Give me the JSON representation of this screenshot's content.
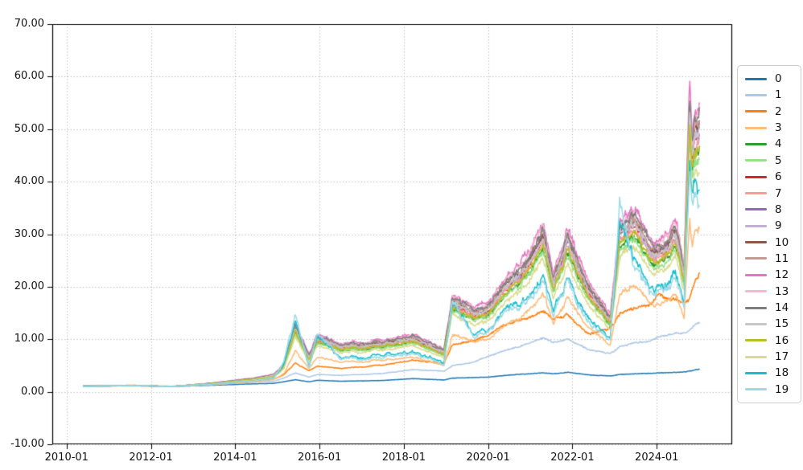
{
  "figure": {
    "title": "Historical Compounded Cumulative Returns",
    "colors": {
      "background": "#ffffff",
      "grid": "#b5b5b5",
      "spine": "#000000",
      "tick": "#000000",
      "text": "#111111",
      "legend_border": "#cccccc"
    }
  },
  "chart_data": {
    "type": "line",
    "title": "Historical Compounded Cumulative Returns",
    "xlabel": "",
    "ylabel": "",
    "grid": "dotted",
    "legend_position": "right-outside",
    "ylim": [
      -10,
      70
    ],
    "xlim_years": [
      2009.66,
      2025.79
    ],
    "y_tick_labels": [
      "70.00",
      "60.00",
      "50.00",
      "40.00",
      "30.00",
      "20.00",
      "10.00",
      "0.00",
      "-10.00"
    ],
    "x_tick_labels": [
      "2010-01",
      "2012-01",
      "2014-01",
      "2016-01",
      "2018-01",
      "2020-01",
      "2022-01",
      "2024-01"
    ],
    "x_years": [
      2010.4,
      2011.5,
      2012.5,
      2013.5,
      2014.4,
      2014.9,
      2015.15,
      2015.42,
      2015.75,
      2015.95,
      2016.5,
      2017.5,
      2018.2,
      2018.95,
      2019.15,
      2019.6,
      2020.0,
      2020.7,
      2021.3,
      2021.55,
      2021.9,
      2022.4,
      2022.9,
      2023.12,
      2023.45,
      2023.8,
      2024.05,
      2024.45,
      2024.65,
      2024.78,
      2024.84,
      2024.92,
      2025.02
    ],
    "series": [
      {
        "name": "0",
        "color": "#1f77b4",
        "values": [
          1.05,
          1.15,
          1.0,
          1.25,
          1.5,
          1.6,
          1.9,
          2.3,
          1.9,
          2.2,
          2.0,
          2.15,
          2.5,
          2.25,
          2.6,
          2.7,
          2.8,
          3.3,
          3.6,
          3.4,
          3.7,
          3.2,
          3.0,
          3.3,
          3.4,
          3.5,
          3.6,
          3.7,
          3.75,
          4.0,
          4.0,
          4.2,
          4.3
        ]
      },
      {
        "name": "1",
        "color": "#aec7e8",
        "values": [
          1.05,
          1.18,
          1.02,
          1.35,
          1.8,
          2.0,
          2.6,
          3.6,
          2.8,
          3.3,
          3.1,
          3.5,
          4.2,
          3.9,
          5.0,
          5.5,
          6.8,
          8.5,
          10.3,
          9.3,
          10.0,
          8.0,
          7.2,
          8.6,
          9.2,
          9.6,
          10.5,
          11.2,
          11.0,
          11.8,
          12.2,
          13.0,
          13.4
        ]
      },
      {
        "name": "2",
        "color": "#ff7f0e",
        "values": [
          1.05,
          1.25,
          1.05,
          1.55,
          2.2,
          2.4,
          3.2,
          5.5,
          4.0,
          4.9,
          4.4,
          5.1,
          6.0,
          5.4,
          9.0,
          9.6,
          11.0,
          13.5,
          15.3,
          13.5,
          14.5,
          11.0,
          12.0,
          15.0,
          15.8,
          16.5,
          18.5,
          17.5,
          16.5,
          18.0,
          19.5,
          21.5,
          23.0
        ]
      },
      {
        "name": "3",
        "color": "#ffbb78",
        "values": [
          1.0,
          1.1,
          1.0,
          1.4,
          1.9,
          2.3,
          3.4,
          7.8,
          4.4,
          6.7,
          5.6,
          6.0,
          6.6,
          5.0,
          11.0,
          9.6,
          10.2,
          13.7,
          18.4,
          12.7,
          17.8,
          12.1,
          8.6,
          18.7,
          20.0,
          17.1,
          16.5,
          18.7,
          13.7,
          33.9,
          28.2,
          31.4,
          32.0
        ]
      },
      {
        "name": "4",
        "color": "#2ca02c",
        "values": [
          1.0,
          1.2,
          1.0,
          1.6,
          2.3,
          2.9,
          4.6,
          11.3,
          6.1,
          9.6,
          7.8,
          8.5,
          9.4,
          7.0,
          16.0,
          13.8,
          14.8,
          20.0,
          27.1,
          18.6,
          26.2,
          17.6,
          12.4,
          27.6,
          29.5,
          25.2,
          24.3,
          27.6,
          20.0,
          50.4,
          41.9,
          46.6,
          47.6
        ]
      },
      {
        "name": "5",
        "color": "#98df8a",
        "values": [
          1.0,
          1.2,
          1.0,
          1.6,
          2.3,
          2.9,
          4.5,
          11.0,
          6.0,
          9.4,
          7.7,
          8.3,
          9.2,
          6.9,
          15.7,
          13.6,
          14.5,
          19.6,
          26.6,
          18.2,
          25.6,
          17.3,
          12.2,
          27.0,
          28.9,
          24.7,
          23.8,
          27.0,
          19.6,
          49.4,
          41.0,
          45.6,
          46.6
        ]
      },
      {
        "name": "6",
        "color": "#d62728",
        "values": [
          1.1,
          1.2,
          1.0,
          1.6,
          2.4,
          3.0,
          4.8,
          11.9,
          6.5,
          10.1,
          8.3,
          9.0,
          9.9,
          7.4,
          17.0,
          14.6,
          15.6,
          21.2,
          28.8,
          19.7,
          27.8,
          18.7,
          13.1,
          29.3,
          31.3,
          26.8,
          25.8,
          29.3,
          21.2,
          53.5,
          44.4,
          49.5,
          50.5
        ]
      },
      {
        "name": "7",
        "color": "#ff9896",
        "values": [
          1.0,
          1.2,
          1.0,
          1.6,
          2.4,
          3.0,
          4.8,
          11.7,
          6.3,
          9.9,
          8.1,
          8.8,
          9.7,
          7.2,
          16.6,
          14.4,
          15.4,
          20.8,
          28.2,
          19.3,
          27.2,
          18.3,
          12.9,
          28.7,
          30.7,
          26.2,
          25.3,
          28.7,
          20.8,
          52.5,
          43.6,
          48.5,
          49.5
        ]
      },
      {
        "name": "8",
        "color": "#9467bd",
        "values": [
          1.1,
          1.2,
          1.0,
          1.6,
          2.5,
          3.1,
          5.0,
          12.2,
          6.6,
          10.4,
          8.5,
          9.2,
          10.2,
          7.6,
          17.4,
          15.0,
          16.1,
          21.8,
          29.6,
          20.2,
          28.6,
          19.2,
          13.5,
          30.1,
          32.2,
          27.5,
          26.5,
          30.1,
          21.8,
          55.1,
          45.7,
          50.9,
          52.0
        ]
      },
      {
        "name": "9",
        "color": "#c5b0d5",
        "values": [
          1.1,
          1.2,
          1.0,
          1.6,
          2.4,
          3.0,
          4.9,
          12.0,
          6.5,
          10.2,
          8.3,
          9.1,
          10.0,
          7.4,
          17.1,
          14.8,
          15.8,
          21.4,
          29.1,
          19.9,
          28.0,
          18.9,
          13.2,
          29.6,
          31.6,
          27.0,
          26.0,
          29.6,
          21.4,
          54.0,
          44.9,
          50.0,
          51.0
        ]
      },
      {
        "name": "10",
        "color": "#8c564b",
        "values": [
          1.1,
          1.2,
          1.0,
          1.6,
          2.5,
          3.1,
          5.0,
          12.3,
          6.7,
          10.5,
          8.6,
          9.3,
          10.2,
          7.6,
          17.6,
          15.2,
          16.2,
          22.0,
          29.9,
          20.4,
          28.8,
          19.4,
          13.6,
          30.4,
          32.5,
          27.8,
          26.7,
          30.4,
          22.0,
          55.6,
          46.2,
          51.4,
          52.5
        ]
      },
      {
        "name": "11",
        "color": "#c49c94",
        "values": [
          1.1,
          1.2,
          1.0,
          1.6,
          2.5,
          3.1,
          5.1,
          12.6,
          6.8,
          10.6,
          8.7,
          9.5,
          10.4,
          7.7,
          17.9,
          15.4,
          16.5,
          22.4,
          30.4,
          20.8,
          29.4,
          19.7,
          13.8,
          31.0,
          33.1,
          28.3,
          27.2,
          31.0,
          22.4,
          56.6,
          47.0,
          52.4,
          53.4
        ]
      },
      {
        "name": "12",
        "color": "#e377c2",
        "values": [
          1.1,
          1.2,
          1.0,
          1.7,
          2.6,
          3.3,
          5.3,
          13.2,
          7.1,
          11.2,
          9.1,
          9.9,
          10.9,
          8.1,
          18.9,
          16.3,
          17.4,
          23.6,
          32.1,
          21.9,
          30.9,
          20.8,
          14.6,
          32.6,
          34.9,
          29.8,
          28.7,
          32.6,
          23.6,
          60.5,
          49.6,
          55.2,
          56.4
        ]
      },
      {
        "name": "13",
        "color": "#f7b6d2",
        "values": [
          1.1,
          1.2,
          1.0,
          1.7,
          2.5,
          3.2,
          5.2,
          12.9,
          6.9,
          10.9,
          8.9,
          9.7,
          10.7,
          7.9,
          18.4,
          15.9,
          17.0,
          23.0,
          31.3,
          21.4,
          30.2,
          20.3,
          14.2,
          31.8,
          34.0,
          29.1,
          28.0,
          31.8,
          23.0,
          58.2,
          48.3,
          53.8,
          54.9
        ]
      },
      {
        "name": "14",
        "color": "#7f7f7f",
        "values": [
          1.1,
          1.2,
          1.0,
          1.7,
          2.5,
          3.2,
          5.1,
          12.8,
          6.9,
          10.8,
          8.8,
          9.6,
          10.6,
          7.9,
          18.2,
          15.7,
          16.8,
          22.8,
          31.0,
          21.2,
          29.9,
          20.1,
          14.1,
          31.5,
          33.7,
          28.8,
          27.7,
          31.5,
          22.8,
          57.7,
          47.9,
          53.3,
          54.4
        ]
      },
      {
        "name": "15",
        "color": "#c7c7c7",
        "values": [
          1.1,
          1.2,
          1.0,
          1.6,
          2.4,
          3.1,
          4.9,
          12.1,
          6.6,
          10.3,
          8.4,
          9.1,
          10.1,
          7.5,
          17.3,
          14.9,
          15.9,
          21.6,
          29.3,
          20.1,
          28.3,
          19.0,
          13.4,
          29.8,
          31.9,
          27.3,
          26.2,
          29.8,
          21.6,
          54.6,
          45.3,
          50.4,
          51.5
        ]
      },
      {
        "name": "16",
        "color": "#bcbd22",
        "values": [
          1.0,
          1.2,
          1.0,
          1.6,
          2.4,
          2.9,
          4.7,
          11.5,
          6.2,
          9.7,
          8.0,
          8.7,
          9.5,
          7.1,
          16.3,
          14.1,
          15.1,
          20.4,
          27.7,
          18.9,
          26.7,
          18.0,
          12.6,
          28.2,
          30.1,
          25.7,
          24.8,
          28.2,
          20.4,
          51.4,
          42.7,
          47.6,
          48.5
        ]
      },
      {
        "name": "17",
        "color": "#dbdb8d",
        "values": [
          1.0,
          1.2,
          1.0,
          1.5,
          2.2,
          2.8,
          4.3,
          10.5,
          5.8,
          8.9,
          7.3,
          8.0,
          8.7,
          6.5,
          14.9,
          12.9,
          13.8,
          18.6,
          25.2,
          17.3,
          24.3,
          16.4,
          11.6,
          25.6,
          27.4,
          23.4,
          22.6,
          25.6,
          18.6,
          46.8,
          38.8,
          43.2,
          44.1
        ]
      },
      {
        "name": "18",
        "color": "#17becf",
        "values": [
          1.0,
          1.2,
          1.0,
          1.5,
          2.1,
          2.6,
          5.0,
          13.8,
          4.9,
          11.0,
          6.3,
          7.0,
          7.6,
          5.5,
          17.2,
          11.2,
          12.5,
          16.5,
          22.0,
          14.5,
          21.5,
          14.0,
          9.8,
          33.0,
          25.0,
          20.5,
          20.0,
          22.5,
          16.0,
          46.0,
          38.0,
          42.0,
          40.5
        ]
      },
      {
        "name": "19",
        "color": "#9edae5",
        "values": [
          1.0,
          1.2,
          1.0,
          1.5,
          2.1,
          2.5,
          5.5,
          14.8,
          4.6,
          11.8,
          6.0,
          6.6,
          7.2,
          5.2,
          18.0,
          10.6,
          11.8,
          15.6,
          21.0,
          13.5,
          20.5,
          13.2,
          9.2,
          36.5,
          23.5,
          19.5,
          19.0,
          21.5,
          15.0,
          44.0,
          36.0,
          40.0,
          38.5
        ]
      }
    ]
  }
}
